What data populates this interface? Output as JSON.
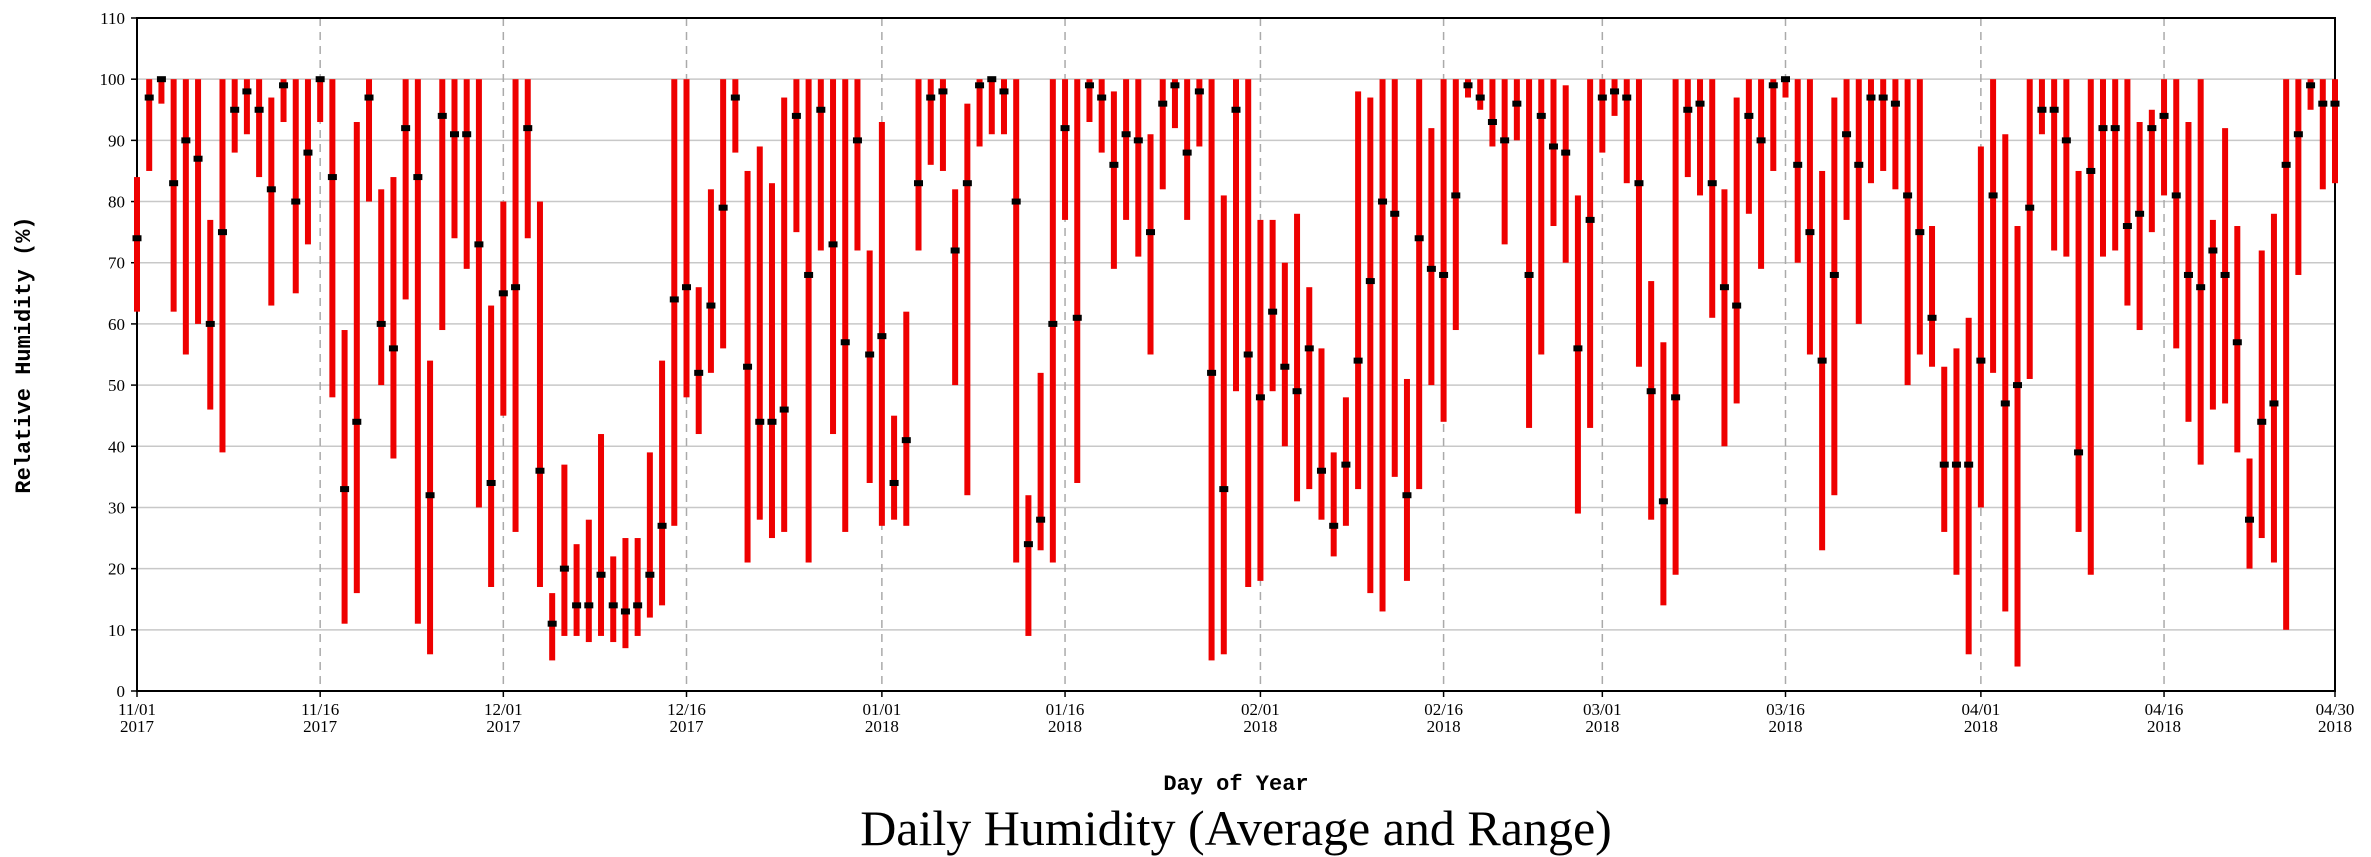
{
  "chart_data": {
    "type": "range",
    "title": "Daily Humidity (Average and Range)",
    "x_label": "Day of Year",
    "y_label": "Relative Humidity (%)",
    "range_color": "#ee0000",
    "average_color": "#000000",
    "grid": true,
    "xlim": [
      "2017-11-01",
      "2018-04-30"
    ],
    "ylim": [
      0,
      110
    ],
    "yticks": [
      0,
      10,
      20,
      30,
      40,
      50,
      60,
      70,
      80,
      90,
      100,
      110
    ],
    "xticks": [
      {
        "value": "2017-11-01",
        "label": [
          "11/01",
          "2017"
        ]
      },
      {
        "value": "2017-11-16",
        "label": [
          "11/16",
          "2017"
        ]
      },
      {
        "value": "2017-12-01",
        "label": [
          "12/01",
          "2017"
        ]
      },
      {
        "value": "2017-12-16",
        "label": [
          "12/16",
          "2017"
        ]
      },
      {
        "value": "2018-01-01",
        "label": [
          "01/01",
          "2018"
        ]
      },
      {
        "value": "2018-01-16",
        "label": [
          "01/16",
          "2018"
        ]
      },
      {
        "value": "2018-02-01",
        "label": [
          "02/01",
          "2018"
        ]
      },
      {
        "value": "2018-02-16",
        "label": [
          "02/16",
          "2018"
        ]
      },
      {
        "value": "2018-03-01",
        "label": [
          "03/01",
          "2018"
        ]
      },
      {
        "value": "2018-03-16",
        "label": [
          "03/16",
          "2018"
        ]
      },
      {
        "value": "2018-04-01",
        "label": [
          "04/01",
          "2018"
        ]
      },
      {
        "value": "2018-04-16",
        "label": [
          "04/16",
          "2018"
        ]
      },
      {
        "value": "2018-04-30",
        "label": [
          "04/30",
          "2018"
        ]
      }
    ],
    "x": [
      "2017-11-01",
      "2017-11-02",
      "2017-11-03",
      "2017-11-04",
      "2017-11-05",
      "2017-11-06",
      "2017-11-07",
      "2017-11-08",
      "2017-11-09",
      "2017-11-10",
      "2017-11-11",
      "2017-11-12",
      "2017-11-13",
      "2017-11-14",
      "2017-11-15",
      "2017-11-16",
      "2017-11-17",
      "2017-11-18",
      "2017-11-19",
      "2017-11-20",
      "2017-11-21",
      "2017-11-22",
      "2017-11-23",
      "2017-11-24",
      "2017-11-25",
      "2017-11-26",
      "2017-11-27",
      "2017-11-28",
      "2017-11-29",
      "2017-11-30",
      "2017-12-01",
      "2017-12-02",
      "2017-12-03",
      "2017-12-04",
      "2017-12-05",
      "2017-12-06",
      "2017-12-07",
      "2017-12-08",
      "2017-12-09",
      "2017-12-10",
      "2017-12-11",
      "2017-12-12",
      "2017-12-13",
      "2017-12-14",
      "2017-12-15",
      "2017-12-16",
      "2017-12-17",
      "2017-12-18",
      "2017-12-19",
      "2017-12-20",
      "2017-12-21",
      "2017-12-22",
      "2017-12-23",
      "2017-12-24",
      "2017-12-25",
      "2017-12-26",
      "2017-12-27",
      "2017-12-28",
      "2017-12-29",
      "2017-12-30",
      "2017-12-31",
      "2018-01-01",
      "2018-01-02",
      "2018-01-03",
      "2018-01-04",
      "2018-01-05",
      "2018-01-06",
      "2018-01-07",
      "2018-01-08",
      "2018-01-09",
      "2018-01-10",
      "2018-01-11",
      "2018-01-12",
      "2018-01-13",
      "2018-01-14",
      "2018-01-15",
      "2018-01-16",
      "2018-01-17",
      "2018-01-18",
      "2018-01-19",
      "2018-01-20",
      "2018-01-21",
      "2018-01-22",
      "2018-01-23",
      "2018-01-24",
      "2018-01-25",
      "2018-01-26",
      "2018-01-27",
      "2018-01-28",
      "2018-01-29",
      "2018-01-30",
      "2018-01-31",
      "2018-02-01",
      "2018-02-02",
      "2018-02-03",
      "2018-02-04",
      "2018-02-05",
      "2018-02-06",
      "2018-02-07",
      "2018-02-08",
      "2018-02-09",
      "2018-02-10",
      "2018-02-11",
      "2018-02-12",
      "2018-02-13",
      "2018-02-14",
      "2018-02-15",
      "2018-02-16",
      "2018-02-17",
      "2018-02-18",
      "2018-02-19",
      "2018-02-20",
      "2018-02-21",
      "2018-02-22",
      "2018-02-23",
      "2018-02-24",
      "2018-02-25",
      "2018-02-26",
      "2018-02-27",
      "2018-02-28",
      "2018-03-01",
      "2018-03-02",
      "2018-03-03",
      "2018-03-04",
      "2018-03-05",
      "2018-03-06",
      "2018-03-07",
      "2018-03-08",
      "2018-03-09",
      "2018-03-10",
      "2018-03-11",
      "2018-03-12",
      "2018-03-13",
      "2018-03-14",
      "2018-03-15",
      "2018-03-16",
      "2018-03-17",
      "2018-03-18",
      "2018-03-19",
      "2018-03-20",
      "2018-03-21",
      "2018-03-22",
      "2018-03-23",
      "2018-03-24",
      "2018-03-25",
      "2018-03-26",
      "2018-03-27",
      "2018-03-28",
      "2018-03-29",
      "2018-03-30",
      "2018-03-31",
      "2018-04-01",
      "2018-04-02",
      "2018-04-03",
      "2018-04-04",
      "2018-04-05",
      "2018-04-06",
      "2018-04-07",
      "2018-04-08",
      "2018-04-09",
      "2018-04-10",
      "2018-04-11",
      "2018-04-12",
      "2018-04-13",
      "2018-04-14",
      "2018-04-15",
      "2018-04-16",
      "2018-04-17",
      "2018-04-18",
      "2018-04-19",
      "2018-04-20",
      "2018-04-21",
      "2018-04-22",
      "2018-04-23",
      "2018-04-24",
      "2018-04-25",
      "2018-04-26",
      "2018-04-27",
      "2018-04-28",
      "2018-04-29",
      "2018-04-30"
    ],
    "low": [
      62,
      85,
      96,
      62,
      55,
      60,
      46,
      39,
      88,
      91,
      84,
      63,
      93,
      65,
      73,
      93,
      48,
      11,
      16,
      80,
      50,
      38,
      64,
      11,
      6,
      59,
      74,
      69,
      30,
      17,
      45,
      26,
      74,
      17,
      5,
      9,
      9,
      8,
      9,
      8,
      7,
      9,
      12,
      14,
      27,
      48,
      42,
      52,
      56,
      88,
      21,
      28,
      25,
      26,
      75,
      21,
      72,
      42,
      26,
      72,
      34,
      27,
      28,
      27,
      72,
      86,
      85,
      50,
      32,
      89,
      91,
      91,
      21,
      9,
      23,
      21,
      77,
      34,
      93,
      88,
      69,
      77,
      71,
      55,
      82,
      92,
      77,
      89,
      5,
      6,
      49,
      17,
      18,
      49,
      40,
      31,
      33,
      28,
      22,
      27,
      33,
      16,
      13,
      35,
      18,
      33,
      50,
      44,
      59,
      97,
      95,
      89,
      73,
      90,
      43,
      55,
      76,
      70,
      29,
      43,
      88,
      94,
      83,
      53,
      28,
      14,
      19,
      84,
      81,
      61,
      40,
      47,
      78,
      69,
      85,
      97,
      70,
      55,
      23,
      32,
      77,
      60,
      83,
      85,
      82,
      50,
      55,
      53,
      26,
      19,
      6,
      30,
      52,
      13,
      4,
      51,
      91,
      72,
      71,
      26,
      19,
      71,
      72,
      63,
      59,
      75,
      81,
      56,
      44,
      37,
      46,
      47,
      39,
      20,
      25,
      21,
      10,
      68,
      95,
      82,
      83
    ],
    "high": [
      84,
      100,
      100,
      100,
      100,
      100,
      77,
      100,
      100,
      100,
      100,
      97,
      100,
      100,
      100,
      100,
      100,
      59,
      93,
      100,
      82,
      84,
      100,
      100,
      54,
      100,
      100,
      100,
      100,
      63,
      80,
      100,
      100,
      80,
      16,
      37,
      24,
      28,
      42,
      22,
      25,
      25,
      39,
      54,
      100,
      100,
      66,
      82,
      100,
      100,
      85,
      89,
      83,
      97,
      100,
      100,
      100,
      100,
      100,
      100,
      72,
      93,
      45,
      62,
      100,
      100,
      100,
      82,
      96,
      100,
      100,
      100,
      100,
      32,
      52,
      100,
      100,
      100,
      100,
      100,
      98,
      100,
      100,
      91,
      100,
      100,
      100,
      100,
      100,
      81,
      100,
      100,
      77,
      77,
      70,
      78,
      66,
      56,
      39,
      48,
      98,
      97,
      100,
      100,
      51,
      100,
      92,
      100,
      100,
      100,
      100,
      100,
      100,
      100,
      100,
      100,
      100,
      99,
      81,
      100,
      100,
      100,
      100,
      100,
      67,
      57,
      100,
      100,
      100,
      100,
      82,
      97,
      100,
      100,
      100,
      100,
      100,
      100,
      85,
      97,
      100,
      100,
      100,
      100,
      100,
      100,
      100,
      76,
      53,
      56,
      61,
      89,
      100,
      91,
      76,
      100,
      100,
      100,
      100,
      85,
      100,
      100,
      100,
      100,
      93,
      95,
      100,
      100,
      93,
      100,
      77,
      92,
      76,
      38,
      72,
      78,
      100,
      100,
      100,
      100,
      100
    ],
    "average": [
      74,
      97,
      100,
      83,
      90,
      87,
      60,
      75,
      95,
      98,
      95,
      82,
      99,
      80,
      88,
      100,
      84,
      33,
      44,
      97,
      60,
      56,
      92,
      84,
      32,
      94,
      91,
      91,
      73,
      34,
      65,
      66,
      92,
      36,
      11,
      20,
      14,
      14,
      19,
      14,
      13,
      14,
      19,
      27,
      64,
      66,
      52,
      63,
      79,
      97,
      53,
      44,
      44,
      46,
      94,
      68,
      95,
      73,
      57,
      90,
      55,
      58,
      34,
      41,
      83,
      97,
      98,
      72,
      83,
      99,
      100,
      98,
      80,
      24,
      28,
      60,
      92,
      61,
      99,
      97,
      86,
      91,
      90,
      75,
      96,
      99,
      88,
      98,
      52,
      33,
      95,
      55,
      48,
      62,
      53,
      49,
      56,
      36,
      27,
      37,
      54,
      67,
      80,
      78,
      32,
      74,
      69,
      68,
      81,
      99,
      97,
      93,
      90,
      96,
      68,
      94,
      89,
      88,
      56,
      77,
      97,
      98,
      97,
      83,
      49,
      31,
      48,
      95,
      96,
      83,
      66,
      63,
      94,
      90,
      99,
      100,
      86,
      75,
      54,
      68,
      91,
      86,
      97,
      97,
      96,
      81,
      75,
      61,
      37,
      37,
      37,
      54,
      81,
      47,
      50,
      79,
      95,
      95,
      90,
      39,
      85,
      92,
      92,
      76,
      78,
      92,
      94,
      81,
      68,
      66,
      72,
      68,
      57,
      28,
      44,
      47,
      86,
      91,
      99,
      96,
      96
    ]
  }
}
